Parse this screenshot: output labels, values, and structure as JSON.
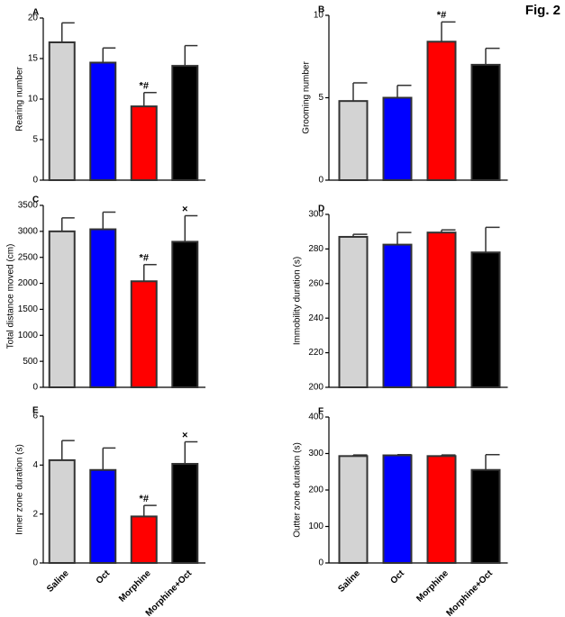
{
  "figure_label": "Fig. 2",
  "bar_colors": [
    "#d3d3d3",
    "#0000ff",
    "#ff0000",
    "#000000"
  ],
  "chart_data": [
    {
      "type": "bar",
      "panel": "A",
      "y_label": "Rearing number",
      "values": [
        17,
        14.5,
        9.1,
        14.1
      ],
      "errors": [
        2.4,
        1.8,
        1.7,
        2.5
      ],
      "annotations": [
        null,
        null,
        "*#",
        null
      ],
      "ylim": [
        0,
        20
      ],
      "yticks": [
        0,
        5,
        10,
        15,
        20
      ]
    },
    {
      "type": "bar",
      "panel": "B",
      "y_label": "Grooming number",
      "values": [
        4.8,
        5.0,
        8.4,
        7.0
      ],
      "errors": [
        1.1,
        0.75,
        1.2,
        1.0
      ],
      "annotations": [
        null,
        null,
        "*#",
        null
      ],
      "ylim": [
        0,
        10
      ],
      "yticks": [
        0,
        5,
        10
      ]
    },
    {
      "type": "bar",
      "panel": "C",
      "y_label": "Total distance moved (cm)",
      "values": [
        3000,
        3040,
        2040,
        2800
      ],
      "errors": [
        260,
        330,
        320,
        500
      ],
      "annotations": [
        null,
        null,
        "*#",
        "×"
      ],
      "ylim": [
        0,
        3500
      ],
      "yticks": [
        0,
        500,
        1000,
        1500,
        2000,
        2500,
        3000,
        3500
      ]
    },
    {
      "type": "bar",
      "panel": "D",
      "y_label": "Immobility duration (s)",
      "values": [
        287,
        282.5,
        289.5,
        278
      ],
      "errors": [
        1.5,
        7,
        1.5,
        14.5
      ],
      "annotations": [
        null,
        null,
        null,
        null
      ],
      "ylim": [
        200,
        300
      ],
      "yticks": [
        200,
        220,
        240,
        260,
        280,
        300
      ]
    },
    {
      "type": "bar",
      "panel": "E",
      "y_label": "Inner zone duration (s)",
      "categories": [
        "Saline",
        "Oct",
        "Morphine",
        "Morphine+Oct"
      ],
      "values": [
        4.2,
        3.8,
        1.9,
        4.05
      ],
      "errors": [
        0.8,
        0.9,
        0.45,
        0.9
      ],
      "annotations": [
        null,
        null,
        "*#",
        "×"
      ],
      "ylim": [
        0,
        6
      ],
      "yticks": [
        0,
        2,
        4,
        6
      ]
    },
    {
      "type": "bar",
      "panel": "F",
      "y_label": "Outter zone duration (s)",
      "categories": [
        "Saline",
        "Oct",
        "Morphine",
        "Morphine+Oct"
      ],
      "values": [
        293,
        295,
        293,
        255
      ],
      "errors": [
        3,
        2,
        3,
        42
      ],
      "annotations": [
        null,
        null,
        null,
        null
      ],
      "ylim": [
        0,
        400
      ],
      "yticks": [
        0,
        100,
        200,
        300,
        400
      ]
    }
  ]
}
